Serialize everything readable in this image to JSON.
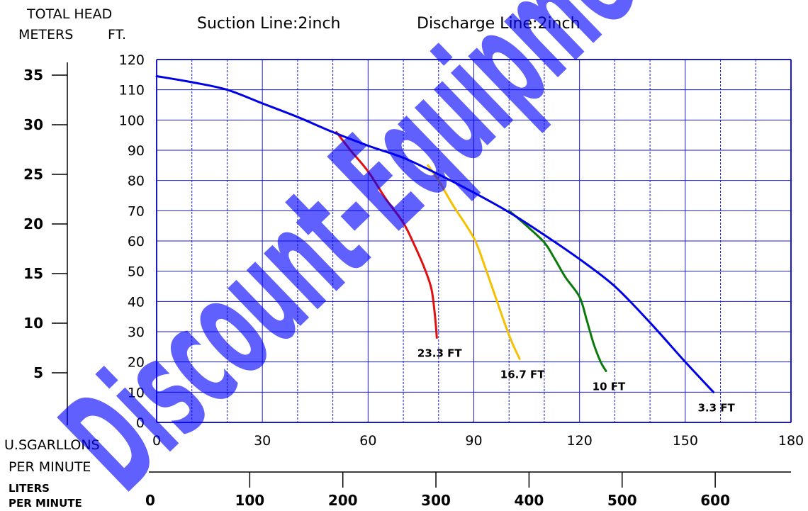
{
  "header": {
    "total_head_label": "TOTAL HEAD",
    "meters_label": "METERS",
    "ft_label": "FT.",
    "suction_line": "Suction Line:2inch",
    "discharge_line": "Discharge Line:2inch"
  },
  "x_unit_labels": {
    "gpm_line1": "U.SGARLLONS",
    "gpm_line2": "PER MINUTE",
    "lpm_line1": "LITERS",
    "lpm_line2": "PER MINUTE"
  },
  "watermark": "Discount-Equipment",
  "colors": {
    "grid": "#1a1acc",
    "main_curve": "#0000e6",
    "red": "#e01010",
    "yellow": "#f5c000",
    "green": "#0a7a0a",
    "watermark": "#0000ff"
  },
  "chart_data": {
    "type": "line",
    "x_axis": {
      "label": "U.SGARLLONS PER MINUTE",
      "range": [
        0,
        180
      ],
      "ticks": [
        0,
        30,
        60,
        90,
        120,
        150,
        180
      ],
      "minor_step": 10
    },
    "y_axis_ft": {
      "label": "FT.",
      "range": [
        0,
        120
      ],
      "ticks": [
        0,
        10,
        20,
        30,
        40,
        50,
        60,
        70,
        80,
        90,
        100,
        110,
        120
      ]
    },
    "y_axis_meters": {
      "label": "METERS",
      "ticks": [
        5,
        10,
        15,
        20,
        25,
        30,
        35
      ]
    },
    "x_axis_liters": {
      "label": "LITERS PER MINUTE",
      "ticks": [
        0,
        100,
        200,
        300,
        400,
        500,
        600
      ]
    },
    "series": [
      {
        "name": "3.3 FT",
        "color": "#0000e6",
        "points": [
          [
            0,
            114.5
          ],
          [
            10,
            112.5
          ],
          [
            20,
            110
          ],
          [
            30,
            105.5
          ],
          [
            40,
            101
          ],
          [
            50,
            96
          ],
          [
            60,
            91.5
          ],
          [
            70,
            87.5
          ],
          [
            80,
            82
          ],
          [
            90,
            76
          ],
          [
            100,
            69.5
          ],
          [
            110,
            62
          ],
          [
            120,
            54
          ],
          [
            130,
            45
          ],
          [
            140,
            33
          ],
          [
            150,
            20
          ],
          [
            158,
            10
          ]
        ]
      },
      {
        "name": "23.3 FT",
        "color": "#e01010",
        "points": [
          [
            51,
            96
          ],
          [
            55,
            90
          ],
          [
            60,
            83
          ],
          [
            65,
            74
          ],
          [
            70,
            66
          ],
          [
            73,
            59
          ],
          [
            76,
            51
          ],
          [
            78,
            44
          ],
          [
            79,
            35
          ],
          [
            79.5,
            28
          ]
        ]
      },
      {
        "name": "16.7 FT",
        "color": "#f5c000",
        "points": [
          [
            77,
            85
          ],
          [
            80,
            80
          ],
          [
            84,
            72
          ],
          [
            90,
            61
          ],
          [
            93,
            52
          ],
          [
            96,
            42
          ],
          [
            99,
            32
          ],
          [
            101,
            26
          ],
          [
            103,
            21
          ]
        ]
      },
      {
        "name": "10 FT",
        "color": "#0a7a0a",
        "points": [
          [
            100,
            70
          ],
          [
            105,
            65
          ],
          [
            110,
            59.5
          ],
          [
            113,
            54
          ],
          [
            116,
            48
          ],
          [
            120,
            41.5
          ],
          [
            122,
            34
          ],
          [
            124,
            26
          ],
          [
            126,
            20
          ],
          [
            127.5,
            17
          ]
        ]
      }
    ]
  }
}
